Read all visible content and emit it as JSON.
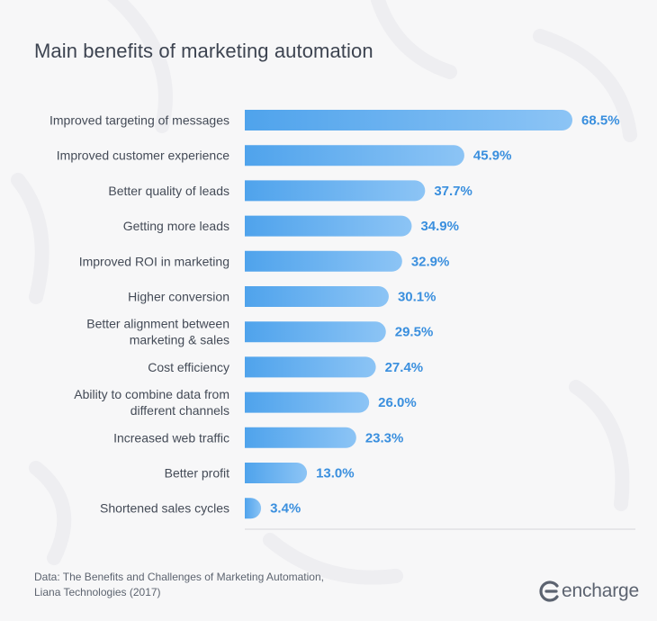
{
  "title": "Main benefits of marketing automation",
  "chart_data": {
    "type": "bar",
    "orientation": "horizontal",
    "title": "Main benefits of marketing automation",
    "categories": [
      "Improved targeting of messages",
      "Improved customer experience",
      "Better quality of leads",
      "Getting more leads",
      "Improved ROI in marketing",
      "Higher conversion",
      "Better alignment between marketing & sales",
      "Cost efficiency",
      "Ability to combine data from different channels",
      "Increased web traffic",
      "Better profit",
      "Shortened sales cycles"
    ],
    "category_lines": [
      [
        "Improved targeting of messages"
      ],
      [
        "Improved customer experience"
      ],
      [
        "Better quality of leads"
      ],
      [
        "Getting more leads"
      ],
      [
        "Improved ROI in marketing"
      ],
      [
        "Higher conversion"
      ],
      [
        "Better alignment between",
        "marketing & sales"
      ],
      [
        "Cost efficiency"
      ],
      [
        "Ability to combine data from",
        "different channels"
      ],
      [
        "Increased web traffic"
      ],
      [
        "Better profit"
      ],
      [
        "Shortened sales cycles"
      ]
    ],
    "values": [
      68.5,
      45.9,
      37.7,
      34.9,
      32.9,
      30.1,
      29.5,
      27.4,
      26.0,
      23.3,
      13.0,
      3.4
    ],
    "value_labels": [
      "68.5%",
      "45.9%",
      "37.7%",
      "34.9%",
      "32.9%",
      "30.1%",
      "29.5%",
      "27.4%",
      "26.0%",
      "23.3%",
      "13.0%",
      "3.4%"
    ],
    "unit": "%",
    "xlim": [
      0,
      68.5
    ],
    "grid": false,
    "bar_color": "#4fa3ec",
    "bar_color_light": "#8cc4f5",
    "value_label_color": "#3a8fde"
  },
  "source": {
    "line1": "Data: The Benefits and Challenges of Marketing Automation,",
    "line2": "Liana Technologies (2017)"
  },
  "logo": {
    "text": "encharge",
    "icon": "encharge-logo-icon"
  }
}
